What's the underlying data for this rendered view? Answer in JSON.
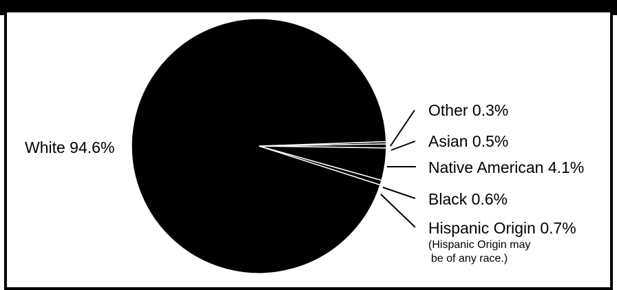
{
  "chart_data": {
    "type": "pie",
    "categories": [
      "White",
      "Native American",
      "Black",
      "Asian",
      "Other"
    ],
    "values": [
      94.6,
      4.1,
      0.6,
      0.5,
      0.3
    ],
    "labels": {
      "white": "White 94.6%",
      "other": "Other 0.3%",
      "asian": "Asian 0.5%",
      "native_american": "Native American 4.1%",
      "black": "Black 0.6%",
      "hispanic": "Hispanic Origin 0.7%"
    },
    "note_line1": "(Hispanic Origin may",
    "note_line2": "be of any race.)",
    "colors": {
      "slice": "#000000",
      "separator": "#ffffff",
      "background": "#ffffff"
    }
  }
}
